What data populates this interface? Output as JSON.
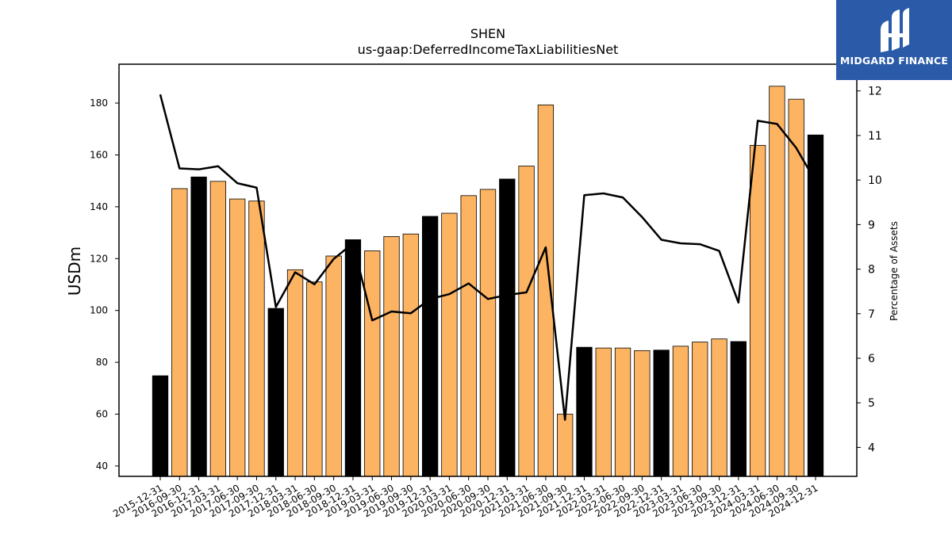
{
  "chart_data": {
    "type": "bar+line",
    "title": "SHEN",
    "subtitle": "us-gaap:DeferredIncomeTaxLiabilitiesNet",
    "ylabel": "USDm",
    "y2label": "Percentage of Assets",
    "ylim": [
      36,
      195
    ],
    "y2lim": [
      3.35,
      12.6
    ],
    "yticks": [
      40,
      60,
      80,
      100,
      120,
      140,
      160,
      180
    ],
    "y2ticks": [
      4,
      5,
      6,
      7,
      8,
      9,
      10,
      11,
      12
    ],
    "categories": [
      "2015-12-31",
      "2016-09-30",
      "2016-12-31",
      "2017-03-31",
      "2017-06-30",
      "2017-09-30",
      "2017-12-31",
      "2018-03-31",
      "2018-06-30",
      "2018-09-30",
      "2018-12-31",
      "2019-03-31",
      "2019-06-30",
      "2019-09-30",
      "2019-12-31",
      "2020-03-31",
      "2020-06-30",
      "2020-09-30",
      "2020-12-31",
      "2021-03-31",
      "2021-06-30",
      "2021-09-30",
      "2021-12-31",
      "2022-03-31",
      "2022-06-30",
      "2022-09-30",
      "2022-12-31",
      "2023-03-31",
      "2023-06-30",
      "2023-09-30",
      "2023-12-31",
      "2024-03-31",
      "2024-06-30",
      "2024-09-30",
      "2024-12-31"
    ],
    "series": [
      {
        "type": "bar",
        "axis": "left",
        "values": [
          74.8,
          147.0,
          151.5,
          149.8,
          143.0,
          142.2,
          100.8,
          115.7,
          111.0,
          121.0,
          127.3,
          123.0,
          128.5,
          129.5,
          136.3,
          137.5,
          144.3,
          146.7,
          150.7,
          155.7,
          179.3,
          60.0,
          85.8,
          85.5,
          85.5,
          84.5,
          84.7,
          86.2,
          87.8,
          89.0,
          88.0,
          163.7,
          186.5,
          181.5,
          167.7
        ],
        "annual_color": "#000000",
        "quarterly_color": "#fdb462",
        "annual_flags": [
          true,
          false,
          true,
          false,
          false,
          false,
          true,
          false,
          false,
          false,
          true,
          false,
          false,
          false,
          true,
          false,
          false,
          false,
          true,
          false,
          false,
          false,
          true,
          false,
          false,
          false,
          true,
          false,
          false,
          false,
          true,
          false,
          false,
          false,
          true
        ]
      },
      {
        "type": "line",
        "axis": "right",
        "color": "#000000",
        "values": [
          11.92,
          10.26,
          10.24,
          10.31,
          9.93,
          9.83,
          7.15,
          7.93,
          7.66,
          8.23,
          8.58,
          6.85,
          7.05,
          7.01,
          7.33,
          7.44,
          7.68,
          7.33,
          7.42,
          7.48,
          8.49,
          4.62,
          9.66,
          9.7,
          9.61,
          9.17,
          8.66,
          8.58,
          8.56,
          8.41,
          7.25,
          11.33,
          11.26,
          10.72,
          9.97
        ]
      }
    ]
  },
  "logo": {
    "text": "MIDGARD FINANCE",
    "background": "#2a5aa8"
  }
}
